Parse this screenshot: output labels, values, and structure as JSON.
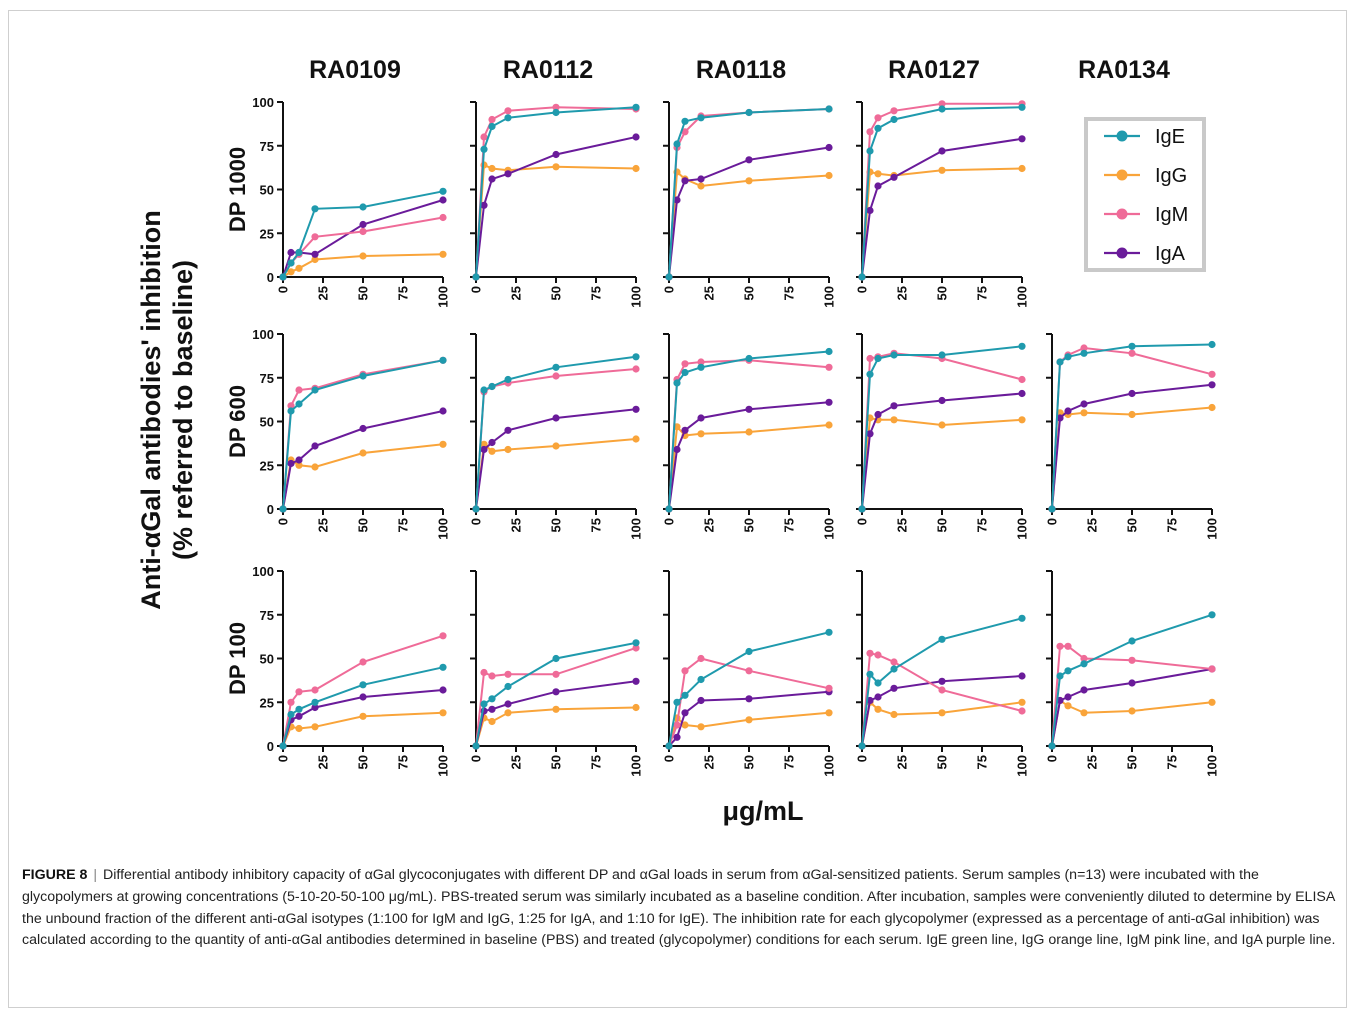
{
  "figure": {
    "caption_label": "FIGURE 8",
    "caption_text": "Differential antibody inhibitory capacity of αGal glycoconjugates with different DP and αGal loads in serum from αGal-sensitized patients. Serum samples (n=13) were incubated with the glycopolymers at growing concentrations (5-10-20-50-100 μg/mL). PBS-treated serum was similarly incubated as a baseline condition. After incubation, samples were conveniently diluted to determine by ELISA the unbound fraction of the different anti-αGal isotypes (1:100 for IgM and IgG, 1:25 for IgA, and 1:10 for IgE). The inhibition rate for each glycopolymer (expressed as a percentage of anti-αGal inhibition) was calculated according to the quantity of anti-αGal antibodies determined in baseline (PBS) and treated (glycopolymer) conditions for each serum. IgE green line, IgG orange line, IgM pink line, and IgA purple line."
  },
  "chart_data": {
    "type": "line",
    "ylabel_line1": "Anti-αGal antibodies' inhibition",
    "ylabel_line2": "(% referred to baseline)",
    "xlabel": "μg/mL",
    "columns": [
      "RA0109",
      "RA0112",
      "RA0118",
      "RA0127",
      "RA0134"
    ],
    "rows": [
      "DP 1000",
      "DP 600",
      "DP 100"
    ],
    "x": [
      0,
      5,
      10,
      20,
      50,
      100
    ],
    "xlim": [
      0,
      100
    ],
    "ylim": [
      0,
      100
    ],
    "xticks": [
      "0",
      "25",
      "50",
      "75",
      "100"
    ],
    "yticks": [
      "0",
      "25",
      "50",
      "75",
      "100"
    ],
    "legend_position": "top-right",
    "series_meta": [
      {
        "name": "IgE",
        "color": "#1f9aad"
      },
      {
        "name": "IgG",
        "color": "#f9a43a"
      },
      {
        "name": "IgM",
        "color": "#ef6b98"
      },
      {
        "name": "IgA",
        "color": "#6a1b9a"
      }
    ],
    "panels": [
      {
        "row": "DP 1000",
        "col": "RA0109",
        "series": {
          "IgE": [
            0,
            8,
            14,
            39,
            40,
            49
          ],
          "IgG": [
            0,
            3,
            5,
            10,
            12,
            13
          ],
          "IgM": [
            0,
            8,
            13,
            23,
            26,
            34
          ],
          "IgA": [
            0,
            14,
            14,
            13,
            30,
            44
          ]
        }
      },
      {
        "row": "DP 1000",
        "col": "RA0112",
        "series": {
          "IgE": [
            0,
            73,
            86,
            91,
            94,
            97
          ],
          "IgG": [
            0,
            64,
            62,
            61,
            63,
            62
          ],
          "IgM": [
            0,
            80,
            90,
            95,
            97,
            96
          ],
          "IgA": [
            0,
            41,
            56,
            59,
            70,
            80
          ]
        }
      },
      {
        "row": "DP 1000",
        "col": "RA0118",
        "series": {
          "IgE": [
            0,
            76,
            89,
            91,
            94,
            96
          ],
          "IgG": [
            0,
            60,
            56,
            52,
            55,
            58
          ],
          "IgM": [
            0,
            74,
            83,
            92,
            94,
            96
          ],
          "IgA": [
            0,
            44,
            55,
            56,
            67,
            74
          ]
        }
      },
      {
        "row": "DP 1000",
        "col": "RA0127",
        "series": {
          "IgE": [
            0,
            72,
            85,
            90,
            96,
            97
          ],
          "IgG": [
            0,
            60,
            59,
            58,
            61,
            62
          ],
          "IgM": [
            0,
            83,
            91,
            95,
            99,
            99
          ],
          "IgA": [
            0,
            38,
            52,
            57,
            72,
            79
          ]
        }
      },
      {
        "row": "DP 600",
        "col": "RA0109",
        "series": {
          "IgE": [
            0,
            56,
            60,
            68,
            76,
            85
          ],
          "IgG": [
            0,
            28,
            25,
            24,
            32,
            37
          ],
          "IgM": [
            0,
            59,
            68,
            69,
            77,
            85
          ],
          "IgA": [
            0,
            26,
            28,
            36,
            46,
            56
          ]
        }
      },
      {
        "row": "DP 600",
        "col": "RA0112",
        "series": {
          "IgE": [
            0,
            68,
            70,
            74,
            81,
            87
          ],
          "IgG": [
            0,
            37,
            33,
            34,
            36,
            40
          ],
          "IgM": [
            0,
            67,
            70,
            72,
            76,
            80
          ],
          "IgA": [
            0,
            34,
            38,
            45,
            52,
            57
          ]
        }
      },
      {
        "row": "DP 600",
        "col": "RA0118",
        "series": {
          "IgE": [
            0,
            72,
            78,
            81,
            86,
            90
          ],
          "IgG": [
            0,
            47,
            42,
            43,
            44,
            48
          ],
          "IgM": [
            0,
            74,
            83,
            84,
            85,
            81
          ],
          "IgA": [
            0,
            34,
            45,
            52,
            57,
            61
          ]
        }
      },
      {
        "row": "DP 600",
        "col": "RA0127",
        "series": {
          "IgE": [
            0,
            77,
            86,
            88,
            88,
            93
          ],
          "IgG": [
            0,
            52,
            51,
            51,
            48,
            51
          ],
          "IgM": [
            0,
            86,
            87,
            89,
            86,
            74
          ],
          "IgA": [
            0,
            43,
            54,
            59,
            62,
            66
          ]
        }
      },
      {
        "row": "DP 600",
        "col": "RA0134",
        "series": {
          "IgE": [
            0,
            84,
            87,
            89,
            93,
            94
          ],
          "IgG": [
            0,
            55,
            54,
            55,
            54,
            58
          ],
          "IgM": [
            0,
            84,
            88,
            92,
            89,
            77
          ],
          "IgA": [
            0,
            52,
            56,
            60,
            66,
            71
          ]
        }
      },
      {
        "row": "DP 100",
        "col": "RA0109",
        "series": {
          "IgE": [
            0,
            18,
            21,
            25,
            35,
            45
          ],
          "IgG": [
            0,
            11,
            10,
            11,
            17,
            19
          ],
          "IgM": [
            0,
            25,
            31,
            32,
            48,
            63
          ],
          "IgA": [
            0,
            15,
            17,
            22,
            28,
            32
          ]
        }
      },
      {
        "row": "DP 100",
        "col": "RA0112",
        "series": {
          "IgE": [
            0,
            24,
            27,
            34,
            50,
            59
          ],
          "IgG": [
            0,
            16,
            14,
            19,
            21,
            22
          ],
          "IgM": [
            0,
            42,
            40,
            41,
            41,
            56
          ],
          "IgA": [
            0,
            20,
            21,
            24,
            31,
            37
          ]
        }
      },
      {
        "row": "DP 100",
        "col": "RA0118",
        "series": {
          "IgE": [
            0,
            25,
            29,
            38,
            54,
            65
          ],
          "IgG": [
            0,
            16,
            12,
            11,
            15,
            19
          ],
          "IgM": [
            0,
            12,
            43,
            50,
            43,
            33
          ],
          "IgA": [
            0,
            5,
            19,
            26,
            27,
            31
          ]
        }
      },
      {
        "row": "DP 100",
        "col": "RA0127",
        "series": {
          "IgE": [
            0,
            41,
            36,
            44,
            61,
            73
          ],
          "IgG": [
            0,
            25,
            21,
            18,
            19,
            25
          ],
          "IgM": [
            0,
            53,
            52,
            48,
            32,
            20
          ],
          "IgA": [
            0,
            26,
            28,
            33,
            37,
            40
          ]
        }
      },
      {
        "row": "DP 100",
        "col": "RA0134",
        "series": {
          "IgE": [
            0,
            40,
            43,
            47,
            60,
            75
          ],
          "IgG": [
            0,
            26,
            23,
            19,
            20,
            25
          ],
          "IgM": [
            0,
            57,
            57,
            50,
            49,
            44
          ],
          "IgA": [
            0,
            26,
            28,
            32,
            36,
            44
          ]
        }
      }
    ]
  }
}
